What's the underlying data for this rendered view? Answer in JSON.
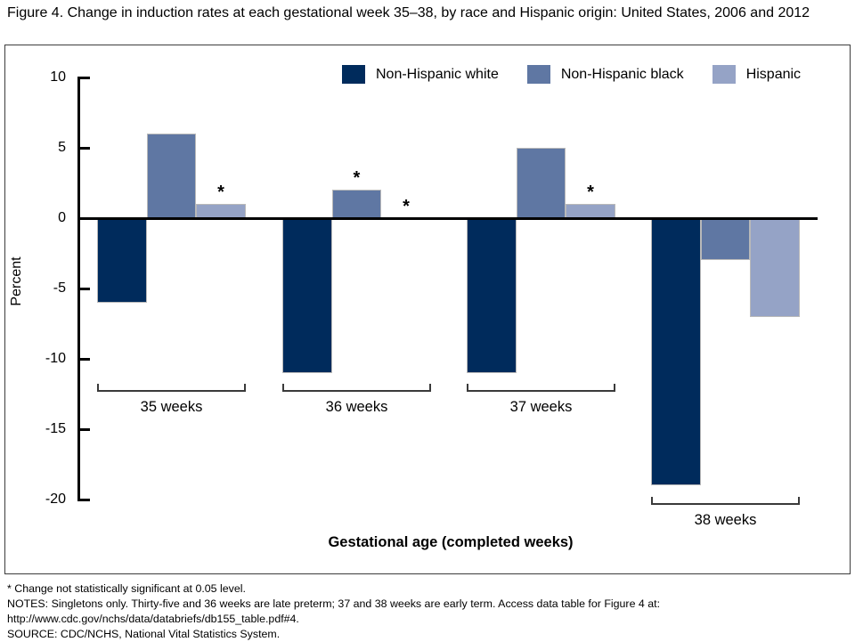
{
  "figure": {
    "title": "Figure 4. Change in induction rates at each gestational week 35–38, by race and Hispanic origin: United States, 2006 and 2012"
  },
  "chart_data": {
    "type": "bar",
    "title": "Figure 4. Change in induction rates at each gestational week 35–38, by race and Hispanic origin: United States, 2006 and 2012",
    "categories": [
      "35 weeks",
      "36 weeks",
      "37 weeks",
      "38 weeks"
    ],
    "series": [
      {
        "name": "Non-Hispanic white",
        "color": "#002b5c",
        "values": [
          -6,
          -11,
          -11,
          -19
        ],
        "asterisks": [
          false,
          false,
          false,
          false
        ]
      },
      {
        "name": "Non-Hispanic black",
        "color": "#5f77a3",
        "values": [
          6,
          2,
          5,
          -3
        ],
        "asterisks": [
          false,
          true,
          false,
          false
        ]
      },
      {
        "name": "Hispanic",
        "color": "#95a3c6",
        "values": [
          1,
          0,
          1,
          -7
        ],
        "asterisks": [
          true,
          true,
          true,
          false
        ]
      }
    ],
    "xlabel": "Gestational age (completed weeks)",
    "ylabel": "Percent",
    "ylim": [
      -20,
      10
    ],
    "yticks": [
      10,
      5,
      0,
      -5,
      -10,
      -15,
      -20
    ],
    "grid": false,
    "legend_position": "top-inside",
    "asterisk_meaning": "Change not statistically significant at 0.05 level"
  },
  "footnotes": {
    "asterisk_note": "* Change not statistically significant at 0.05 level.",
    "notes": "NOTES: Singletons only. Thirty-five and 36 weeks are late preterm; 37 and 38 weeks are early term. Access data table for Figure 4 at: http://www.cdc.gov/nchs/data/databriefs/db155_table.pdf#4.",
    "source": "SOURCE: CDC/NCHS, National Vital Statistics System."
  }
}
